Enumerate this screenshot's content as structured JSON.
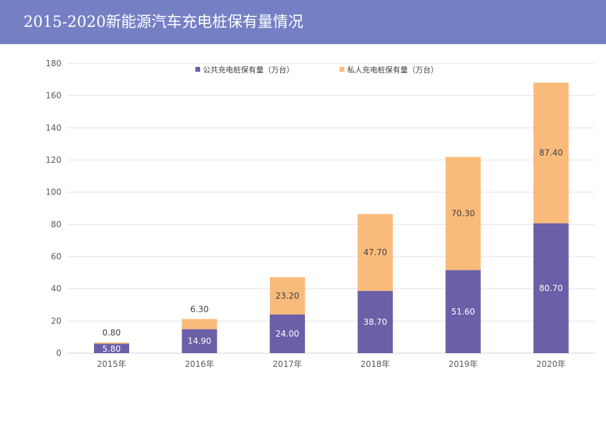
{
  "header": {
    "title": "2015-2020新能源汽车充电桩保有量情况",
    "background": "#7580c4"
  },
  "chart_data": {
    "type": "bar",
    "stacked": true,
    "title": "",
    "xlabel": "",
    "ylabel": "",
    "categories": [
      "2015年",
      "2016年",
      "2017年",
      "2018年",
      "2019年",
      "2020年"
    ],
    "series": [
      {
        "name": "公共充电桩保有量（万台）",
        "color": "#6b5fa8",
        "label_color": "#ffffff",
        "values": [
          5.8,
          14.9,
          24.0,
          38.7,
          51.6,
          80.7
        ],
        "labels": [
          "5.80",
          "14.90",
          "24.00",
          "38.70",
          "51.60",
          "80.70"
        ]
      },
      {
        "name": "私人充电桩保有量（万台）",
        "color": "#f9bb7b",
        "label_color": "#404040",
        "values": [
          0.8,
          6.3,
          23.2,
          47.7,
          70.3,
          87.4
        ],
        "labels": [
          "0.80",
          "6.30",
          "23.20",
          "47.70",
          "70.30",
          "87.40"
        ]
      }
    ],
    "ylim": [
      0,
      180
    ],
    "yticks": [
      0,
      20,
      40,
      60,
      80,
      100,
      120,
      140,
      160,
      180
    ],
    "grid": true,
    "legend_position": "top"
  }
}
